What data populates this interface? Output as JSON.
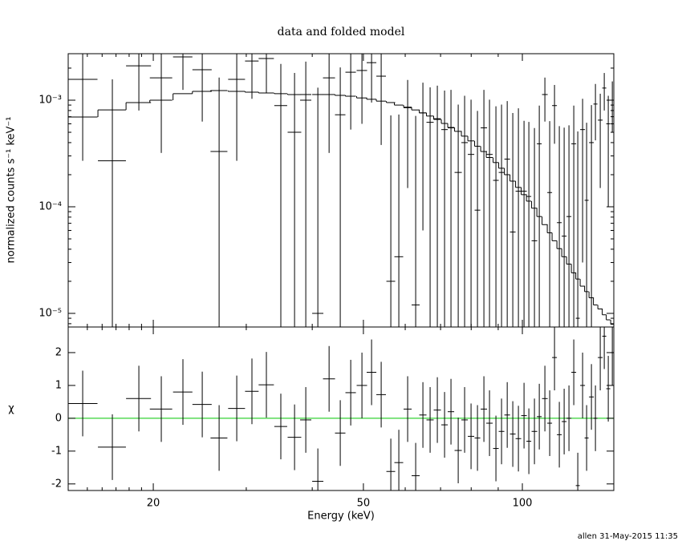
{
  "chart_data": {
    "type": "spectrum",
    "title": "data and folded model",
    "xlabel": "Energy (keV)",
    "footer": "allen 31-May-2015 11:35",
    "xlim": [
      13.8,
      149
    ],
    "log_x": true,
    "xticks": [
      20,
      50,
      100
    ],
    "xminor": [
      15,
      16,
      17,
      18,
      19,
      30,
      40,
      60,
      70,
      80,
      90
    ],
    "x": [
      14.7,
      16.73,
      18.78,
      20.71,
      22.76,
      24.76,
      26.65,
      28.78,
      30.75,
      32.75,
      34.88,
      37.03,
      38.89,
      40.99,
      43.05,
      45.2,
      47.31,
      49.68,
      51.81,
      54.03,
      56.35,
      58.35,
      60.64,
      62.8,
      64.81,
      66.88,
      69.02,
      71.23,
      73.25,
      75.6,
      77.74,
      79.95,
      82.22,
      84.56,
      86.65,
      89.11,
      91.32,
      93.61,
      95.91,
      98.29,
      100.73,
      102.87,
      105.41,
      107.66,
      110.32,
      112.66,
      115.05,
      117.49,
      119.99,
      122.53,
      125.13,
      127.34,
      130.04,
      132.34,
      135.15,
      137.53,
      140.45,
      142.93,
      145.45,
      148.03
    ],
    "xerr": [
      0.98,
      1.02,
      1.02,
      1.01,
      0.96,
      1.04,
      0.98,
      1.06,
      0.91,
      1.09,
      0.98,
      1.1,
      0.95,
      1.0,
      1.13,
      1.03,
      1.08,
      1.13,
      1.09,
      1.13,
      1.08,
      1.12,
      1.06,
      1.1,
      1.02,
      1.05,
      1.09,
      1.0,
      1.03,
      1.19,
      1.09,
      1.12,
      1.01,
      1.18,
      1.21,
      1.09,
      1.12,
      1.15,
      1.17,
      1.2,
      1.23,
      1.08,
      1.29,
      1.13,
      1.35,
      1.18,
      1.21,
      1.23,
      1.26,
      1.29,
      1.31,
      1.11,
      1.37,
      1.16,
      1.42,
      1.2,
      1.47,
      1.25,
      1.27,
      1.04
    ],
    "data": {
      "ylabel": "normalized counts s⁻¹ keV⁻¹",
      "log_y": true,
      "ylim": [
        7.45e-06,
        0.00273
      ],
      "yticks": [
        {
          "value": 0.001,
          "label": "10⁻³"
        },
        {
          "value": 0.0001,
          "label": "10⁻⁴"
        },
        {
          "value": 1e-05,
          "label": "10⁻⁵"
        }
      ],
      "yminor": [
        8e-06,
        9e-06,
        2e-05,
        3e-05,
        4e-05,
        5e-05,
        6e-05,
        7e-05,
        8e-05,
        9e-05,
        0.0002,
        0.0003,
        0.0004,
        0.0005,
        0.0006,
        0.0007,
        0.0008,
        0.0009,
        0.002
      ],
      "color": "#000000",
      "values": [
        0.00157,
        0.00027,
        0.0021,
        0.00162,
        0.00255,
        0.00193,
        0.00033,
        0.00157,
        0.00233,
        0.00246,
        0.00089,
        0.0005,
        0.001,
        1e-05,
        0.00162,
        0.00073,
        0.00183,
        0.0019,
        0.00225,
        0.00168,
        2e-05,
        3.4e-05,
        0.00085,
        1.2e-05,
        0.00076,
        0.00062,
        0.00067,
        0.00053,
        0.00055,
        0.00021,
        0.0004,
        0.00031,
        9.3e-05,
        0.00055,
        0.00031,
        0.000177,
        0.00021,
        0.00028,
        5.8e-05,
        0.00014,
        0.00014,
        0.000125,
        4.8e-05,
        0.00039,
        0.00113,
        0.000136,
        0.00089,
        7.1e-05,
        5.3e-05,
        8.1e-05,
        0.00039,
        9e-06,
        0.00053,
        0.000115,
        0.0004,
        0.00092,
        0.00065,
        0.0013,
        0.0006,
        0.001
      ],
      "yerr": [
        0.0013,
        0.0013,
        0.0013,
        0.0013,
        0.0013,
        0.0013,
        0.0013,
        0.0013,
        0.0013,
        0.0013,
        0.0013,
        0.0013,
        0.0013,
        0.0013,
        0.0013,
        0.0013,
        0.0013,
        0.0013,
        0.0013,
        0.0013,
        0.0007,
        0.0007,
        0.0007,
        0.0007,
        0.0007,
        0.0007,
        0.0007,
        0.0007,
        0.0007,
        0.0007,
        0.0007,
        0.0007,
        0.0007,
        0.0007,
        0.0007,
        0.0007,
        0.0007,
        0.0007,
        0.0007,
        0.0007,
        0.0005,
        0.0005,
        0.0005,
        0.0005,
        0.0005,
        0.0005,
        0.0005,
        0.0005,
        0.0005,
        0.0005,
        0.0005,
        0.0005,
        0.0005,
        0.0005,
        0.0005,
        0.0005,
        0.0005,
        0.0005,
        0.0005,
        0.0005
      ],
      "model": {
        "color": "#000000",
        "values": [
          0.000695,
          0.00081,
          0.00095,
          0.001,
          0.00115,
          0.00121,
          0.00123,
          0.00121,
          0.00119,
          0.00117,
          0.00115,
          0.00113,
          0.00113,
          0.00113,
          0.00113,
          0.00111,
          0.00109,
          0.00105,
          0.00102,
          0.00098,
          0.00095,
          0.0009,
          0.00086,
          0.00081,
          0.00076,
          0.00071,
          0.00066,
          0.000605,
          0.000555,
          0.00051,
          0.00046,
          0.000415,
          0.00037,
          0.00033,
          0.00029,
          0.00026,
          0.00023,
          0.0002,
          0.000174,
          0.000152,
          0.00013,
          0.000113,
          9.7e-05,
          8.1e-05,
          6.8e-05,
          5.7e-05,
          4.8e-05,
          4.05e-05,
          3.4e-05,
          2.9e-05,
          2.4e-05,
          2.1e-05,
          1.8e-05,
          1.6e-05,
          1.4e-05,
          1.2e-05,
          1.1e-05,
          9.7e-06,
          8.7e-06,
          7.9e-06
        ]
      }
    },
    "residuals": {
      "ylabel": "χ",
      "ylim": [
        -2.2,
        2.78
      ],
      "yticks": [
        -2,
        -1,
        0,
        1,
        2
      ],
      "color": "#000000",
      "zero_line_color": "#00c800",
      "values": [
        0.45,
        -0.88,
        0.6,
        0.28,
        0.8,
        0.42,
        -0.6,
        0.3,
        0.82,
        1.02,
        -0.25,
        -0.58,
        -0.05,
        -1.92,
        1.2,
        -0.45,
        0.78,
        1.0,
        1.4,
        0.72,
        -1.62,
        -1.35,
        0.28,
        -1.75,
        0.1,
        -0.05,
        0.25,
        -0.2,
        0.2,
        -0.98,
        -0.05,
        -0.55,
        -0.6,
        0.28,
        -0.15,
        -0.92,
        -0.4,
        0.1,
        -0.48,
        -0.62,
        0.08,
        -0.7,
        -0.4,
        0.05,
        0.6,
        -0.15,
        1.85,
        -0.5,
        -0.1,
        0,
        1.4,
        -2.05,
        1.0,
        -0.6,
        0.65,
        0,
        1.85,
        2.5,
        0.9,
        2.0
      ],
      "yerr": 1
    }
  }
}
